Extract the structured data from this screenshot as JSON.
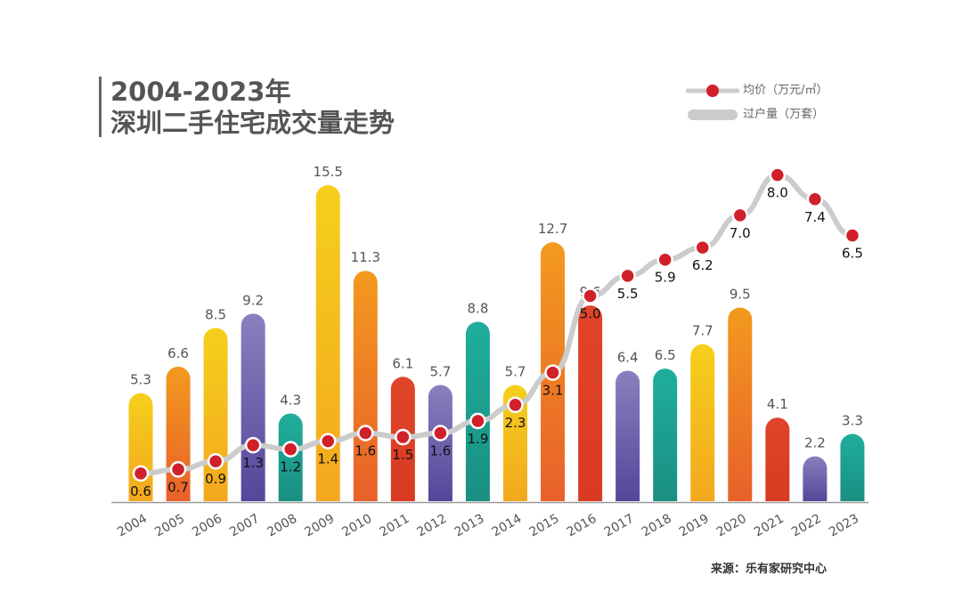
{
  "chart_data": {
    "type": "bar",
    "title": "2004-2023年",
    "subtitle": "深圳二手住宅成交量走势",
    "categories": [
      "2004",
      "2005",
      "2006",
      "2007",
      "2008",
      "2009",
      "2010",
      "2011",
      "2012",
      "2013",
      "2014",
      "2015",
      "2016",
      "2017",
      "2018",
      "2019",
      "2020",
      "2021",
      "2022",
      "2023"
    ],
    "series": [
      {
        "name": "过户量（万套）",
        "type": "bar",
        "values": [
          5.3,
          6.6,
          8.5,
          9.2,
          4.3,
          15.5,
          11.3,
          6.1,
          5.7,
          8.8,
          5.7,
          12.7,
          9.6,
          6.4,
          6.5,
          7.7,
          9.5,
          4.1,
          2.2,
          3.3
        ]
      },
      {
        "name": "均价（万元/㎡）",
        "type": "line",
        "values": [
          0.6,
          0.7,
          0.9,
          1.3,
          1.2,
          1.4,
          1.6,
          1.5,
          1.6,
          1.9,
          2.3,
          3.1,
          5.0,
          5.5,
          5.9,
          6.2,
          7.0,
          8.0,
          7.4,
          6.5
        ]
      }
    ],
    "legend": "top-right",
    "grid": false,
    "source": "来源：乐有家研究中心",
    "colors": {
      "yellow": "#f5cf1c",
      "orange": "#f39a1e",
      "red": "#e0452a",
      "purple": "#8a7fbe",
      "teal": "#1fae9c",
      "line": "#cccccc",
      "dot": "#d0202a"
    }
  }
}
